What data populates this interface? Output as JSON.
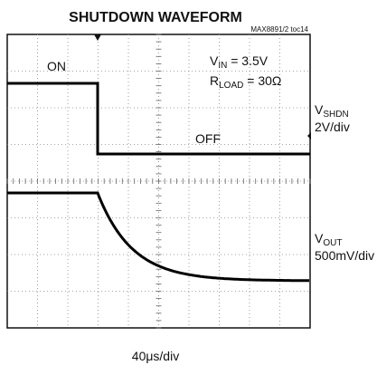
{
  "header": {
    "title": "SHUTDOWN WAVEFORM",
    "figure_id": "MAX8891/2 toc14"
  },
  "annotations": {
    "on": "ON",
    "off": "OFF",
    "vin": {
      "symbol": "V",
      "subscript": "IN",
      "rest": " = 3.5V"
    },
    "rload": {
      "symbol": "R",
      "subscript": "LOAD",
      "rest": " = 30Ω"
    }
  },
  "channels": [
    {
      "symbol": "V",
      "subscript": "SHDN",
      "scale": "2V/div"
    },
    {
      "symbol": "V",
      "subscript": "OUT",
      "scale": "500mV/div"
    }
  ],
  "timebase": "40μs/div"
}
